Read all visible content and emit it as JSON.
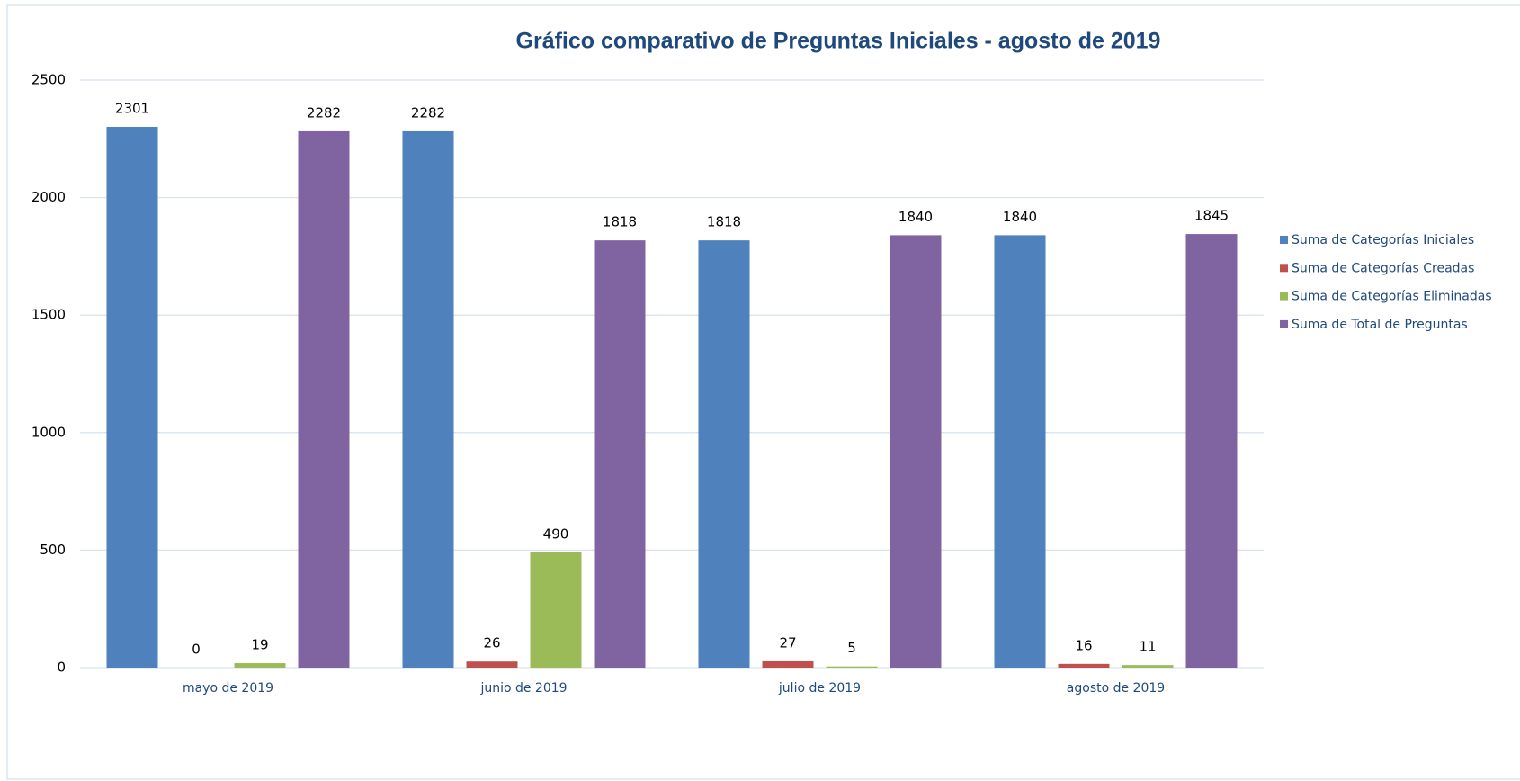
{
  "chart_data": {
    "type": "bar",
    "title": "Gráfico comparativo de Preguntas Iniciales  - agosto de 2019",
    "categories": [
      "mayo de 2019",
      "junio de 2019",
      "julio de 2019",
      "agosto de 2019"
    ],
    "series": [
      {
        "name": "Suma de Categorías Iniciales",
        "color": "#4f81bd",
        "values": [
          2301,
          2282,
          1818,
          1840
        ]
      },
      {
        "name": "Suma de Categorías Creadas",
        "color": "#c0504d",
        "values": [
          0,
          26,
          27,
          16
        ]
      },
      {
        "name": "Suma de Categorías Eliminadas",
        "color": "#9bbb59",
        "values": [
          19,
          490,
          5,
          11
        ]
      },
      {
        "name": "Suma de Total de Preguntas",
        "color": "#8064a2",
        "values": [
          2282,
          1818,
          1840,
          1845
        ]
      }
    ],
    "ylim": [
      0,
      2500
    ],
    "yticks": [
      0,
      500,
      1000,
      1500,
      2000,
      2500
    ],
    "grid": true,
    "legend": "right"
  }
}
